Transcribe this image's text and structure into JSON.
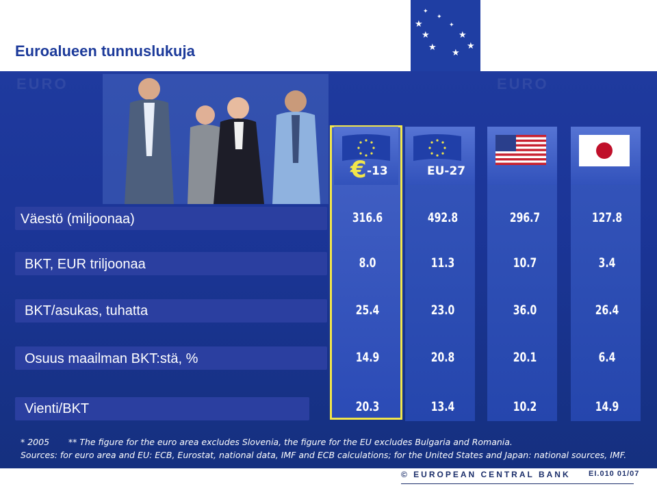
{
  "title": "Euroalueen tunnuslukuja",
  "columns": [
    {
      "label": "-13",
      "icon": "euro-area-flag-icon"
    },
    {
      "label": "EU-27",
      "icon": "eu-flag-icon"
    },
    {
      "label": "",
      "icon": "usa-flag-icon"
    },
    {
      "label": "",
      "icon": "japan-flag-icon"
    }
  ],
  "euro_symbol": "€",
  "rows": [
    {
      "label": "Väestö (miljoonaa)",
      "values": [
        "316.6",
        "492.8",
        "296.7",
        "127.8"
      ]
    },
    {
      "label": "BKT, EUR triljoonaa",
      "values": [
        "8.0",
        "11.3",
        "10.7",
        "3.4"
      ]
    },
    {
      "label": "BKT/asukas, tuhatta",
      "values": [
        "25.4",
        "23.0",
        "36.0",
        "26.4"
      ]
    },
    {
      "label": "Osuus maailman BKT:stä, %",
      "values": [
        "14.9",
        "20.8",
        "20.1",
        "6.4"
      ]
    },
    {
      "label": "Vienti/BKT",
      "values": [
        "20.3",
        "13.4",
        "10.2",
        "14.9"
      ]
    }
  ],
  "footnote1": "* 2005       ** The figure for the euro area excludes Slovenia, the figure for the EU excludes Bulgaria and Romania.",
  "footnote2": "Sources: for euro area and EU: ECB, Eurostat, national data, IMF and ECB calculations; for the United States and Japan: national sources, IMF.",
  "ecb_name": "© EUROPEAN CENTRAL BANK",
  "slide_code": "EI.010 01/07",
  "watermark_left": "EURO",
  "watermark_right": "EURO",
  "colors": {
    "accent": "#f2e64a",
    "panel": "#1f3a9e",
    "title": "#1c3a9a"
  }
}
